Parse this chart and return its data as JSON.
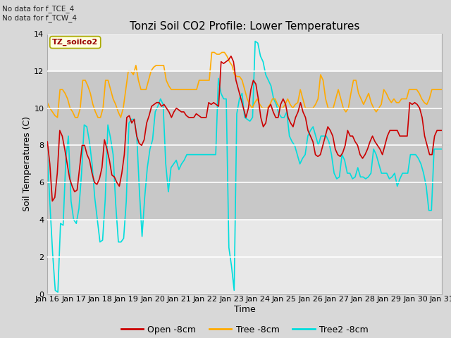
{
  "title": "Tonzi Soil CO2 Profile: Lower Temperatures",
  "xlabel": "Time",
  "ylabel": "Soil Temperatures (C)",
  "top_left_text": "No data for f_TCE_4\nNo data for f_TCW_4",
  "legend_box_text": "TZ_soilco2",
  "ylim": [
    0,
    14
  ],
  "yticks": [
    0,
    2,
    4,
    6,
    8,
    10,
    12,
    14
  ],
  "xtick_labels": [
    "Jan 16",
    "Jan 17",
    "Jan 18",
    "Jan 19",
    "Jan 20",
    "Jan 21",
    "Jan 22",
    "Jan 23",
    "Jan 24",
    "Jan 25",
    "Jan 26",
    "Jan 27",
    "Jan 28",
    "Jan 29",
    "Jan 30",
    "Jan 31"
  ],
  "colors": {
    "open": "#cc0000",
    "tree": "#ffaa00",
    "tree2": "#00dddd"
  },
  "bg_color": "#d8d8d8",
  "plot_bg": "#e8e8e8",
  "inner_band_color": "#c8c8c8",
  "legend_entries": [
    "Open -8cm",
    "Tree -8cm",
    "Tree2 -8cm"
  ],
  "open_data": [
    8.2,
    7.0,
    5.0,
    5.2,
    6.5,
    8.8,
    8.5,
    7.8,
    7.0,
    6.2,
    5.8,
    5.5,
    5.6,
    6.8,
    8.0,
    8.0,
    7.5,
    7.2,
    6.5,
    6.0,
    5.9,
    6.2,
    6.8,
    8.3,
    7.8,
    7.2,
    6.4,
    6.3,
    6.0,
    5.8,
    6.5,
    7.5,
    9.5,
    9.6,
    9.2,
    9.4,
    8.5,
    8.1,
    8.0,
    8.3,
    9.2,
    9.6,
    10.1,
    10.2,
    10.3,
    10.3,
    10.1,
    10.2,
    10.0,
    9.8,
    9.5,
    9.8,
    10.0,
    9.9,
    9.8,
    9.8,
    9.6,
    9.5,
    9.5,
    9.5,
    9.7,
    9.6,
    9.5,
    9.5,
    9.5,
    10.3,
    10.2,
    10.3,
    10.2,
    10.1,
    12.5,
    12.4,
    12.5,
    12.6,
    12.8,
    12.5,
    11.5,
    11.0,
    10.5,
    10.0,
    9.5,
    10.0,
    11.0,
    11.5,
    11.3,
    10.5,
    9.5,
    9.0,
    9.2,
    10.0,
    10.2,
    9.8,
    9.5,
    9.5,
    10.2,
    10.5,
    10.2,
    9.5,
    9.2,
    9.0,
    9.5,
    9.8,
    10.3,
    9.8,
    9.5,
    8.8,
    8.5,
    8.2,
    7.5,
    7.4,
    7.5,
    8.0,
    8.5,
    9.0,
    8.8,
    8.5,
    7.8,
    7.5,
    7.4,
    7.6,
    8.0,
    8.8,
    8.5,
    8.5,
    8.2,
    8.0,
    7.5,
    7.3,
    7.5,
    7.8,
    8.2,
    8.5,
    8.2,
    8.0,
    7.8,
    7.5,
    8.0,
    8.5,
    8.8,
    8.8,
    8.8,
    8.8,
    8.5,
    8.5,
    8.5,
    8.5,
    10.3,
    10.2,
    10.3,
    10.2,
    10.0,
    9.5,
    8.5,
    8.0,
    7.5,
    7.5,
    8.5,
    8.8,
    8.8,
    8.8
  ],
  "tree_data": [
    10.3,
    10.0,
    9.8,
    9.6,
    9.5,
    11.0,
    11.0,
    10.8,
    10.5,
    10.0,
    9.8,
    9.5,
    9.5,
    10.0,
    11.5,
    11.5,
    11.2,
    10.8,
    10.2,
    9.8,
    9.5,
    9.5,
    10.0,
    11.5,
    11.5,
    11.0,
    10.5,
    10.2,
    9.8,
    9.5,
    10.0,
    11.0,
    12.0,
    12.0,
    11.8,
    12.3,
    11.5,
    11.0,
    11.0,
    11.0,
    11.5,
    12.0,
    12.2,
    12.3,
    12.3,
    12.3,
    12.3,
    11.5,
    11.2,
    11.0,
    11.0,
    11.0,
    11.0,
    11.0,
    11.0,
    11.0,
    11.0,
    11.0,
    11.0,
    11.0,
    11.5,
    11.5,
    11.5,
    11.5,
    11.5,
    13.0,
    13.0,
    12.9,
    12.9,
    13.0,
    13.0,
    12.8,
    12.5,
    12.3,
    11.8,
    11.7,
    11.7,
    11.5,
    11.0,
    10.5,
    10.2,
    10.0,
    10.3,
    10.5,
    10.2,
    10.0,
    10.0,
    10.0,
    10.2,
    10.5,
    10.5,
    10.2,
    10.0,
    10.0,
    10.2,
    10.5,
    10.2,
    10.0,
    10.2,
    10.3,
    11.0,
    10.5,
    10.0,
    10.0,
    10.0,
    10.0,
    10.2,
    10.5,
    11.8,
    11.5,
    10.5,
    10.0,
    10.0,
    10.0,
    10.5,
    11.0,
    10.5,
    10.0,
    9.8,
    10.0,
    10.8,
    11.5,
    11.5,
    10.8,
    10.5,
    10.2,
    10.5,
    10.8,
    10.3,
    10.0,
    9.8,
    10.0,
    10.2,
    11.0,
    10.8,
    10.5,
    10.3,
    10.5,
    10.3,
    10.3,
    10.5,
    10.5,
    10.5,
    11.0,
    11.0,
    11.0,
    11.0,
    10.8,
    10.5,
    10.3,
    10.2,
    10.5,
    11.0,
    11.0,
    11.0,
    11.0,
    11.0
  ],
  "tree2_data": [
    7.5,
    4.8,
    2.2,
    0.2,
    0.1,
    3.8,
    3.7,
    7.2,
    8.5,
    5.0,
    4.0,
    3.8,
    4.6,
    6.5,
    9.1,
    9.0,
    8.2,
    7.0,
    5.2,
    4.0,
    2.8,
    2.9,
    5.1,
    9.1,
    8.4,
    7.5,
    4.8,
    2.8,
    2.8,
    3.0,
    5.0,
    9.2,
    9.4,
    9.4,
    8.5,
    5.5,
    3.1,
    5.2,
    6.8,
    7.8,
    8.3,
    9.8,
    10.1,
    10.5,
    10.2,
    7.0,
    5.5,
    6.8,
    7.0,
    7.2,
    6.7,
    7.0,
    7.2,
    7.5,
    7.5,
    7.5,
    7.5,
    7.5,
    7.5,
    7.5,
    7.5,
    7.5,
    7.5,
    7.5,
    7.5,
    11.6,
    10.8,
    10.5,
    10.5,
    2.5,
    1.5,
    0.2,
    9.7,
    10.5,
    10.8,
    9.5,
    9.4,
    9.3,
    9.5,
    13.6,
    13.5,
    12.8,
    12.5,
    11.8,
    11.5,
    11.2,
    10.5,
    10.2,
    9.7,
    9.5,
    9.5,
    9.8,
    8.5,
    8.2,
    8.0,
    7.5,
    7.0,
    7.3,
    7.5,
    8.5,
    8.8,
    9.0,
    8.5,
    8.0,
    8.5,
    8.5,
    8.5,
    8.2,
    7.5,
    6.5,
    6.2,
    6.3,
    7.5,
    7.2,
    6.5,
    6.5,
    6.2,
    6.3,
    6.8,
    6.3,
    6.3,
    6.2,
    6.3,
    6.5,
    7.8,
    7.5,
    7.0,
    6.5,
    6.5,
    6.5,
    6.2,
    6.3,
    6.5,
    5.8,
    6.2,
    6.5,
    6.5,
    6.5,
    7.5,
    7.5,
    7.5,
    7.3,
    7.0,
    6.5,
    5.8,
    4.5,
    4.5,
    7.8,
    7.8,
    7.8,
    7.8
  ]
}
